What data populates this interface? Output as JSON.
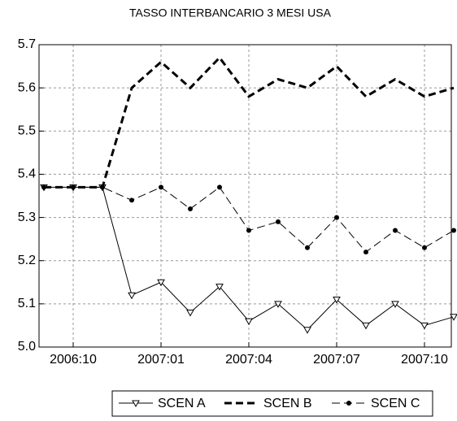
{
  "chart_data": {
    "type": "line",
    "title": "TASSO INTERBANCARIO 3 MESI USA",
    "categories": [
      null,
      "2006:10",
      null,
      null,
      "2007:01",
      null,
      null,
      "2007:04",
      null,
      null,
      "2007:07",
      null,
      null,
      "2007:10",
      null
    ],
    "series": [
      {
        "name": "SCEN A",
        "color": "#000000",
        "line_style": "solid",
        "marker": "triangle-down",
        "values": [
          5.37,
          5.37,
          5.37,
          5.12,
          5.15,
          5.08,
          5.14,
          5.06,
          5.1,
          5.04,
          5.11,
          5.05,
          5.1,
          5.05,
          5.07
        ]
      },
      {
        "name": "SCEN B",
        "color": "#000000",
        "line_style": "dashed",
        "marker": "none",
        "values": [
          5.37,
          5.37,
          5.37,
          5.6,
          5.66,
          5.6,
          5.67,
          5.58,
          5.62,
          5.6,
          5.65,
          5.58,
          5.62,
          5.58,
          5.6
        ]
      },
      {
        "name": "SCEN C",
        "color": "#000000",
        "line_style": "dashdot",
        "marker": "circle",
        "values": [
          5.37,
          5.37,
          5.37,
          5.34,
          5.37,
          5.32,
          5.37,
          5.27,
          5.29,
          5.23,
          5.3,
          5.22,
          5.27,
          5.23,
          5.27
        ]
      }
    ],
    "ylim": [
      5.0,
      5.7
    ],
    "yticks": [
      {
        "value": 5.0,
        "label": "5.0"
      },
      5.1,
      5.2,
      5.3,
      5.4,
      5.5,
      5.6,
      5.7
    ],
    "grid": true,
    "legend": "bottom"
  }
}
